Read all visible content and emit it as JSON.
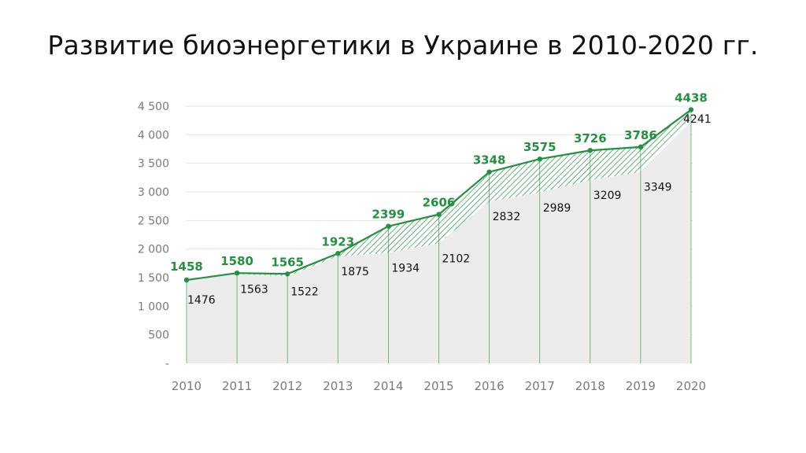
{
  "title": "Развитие биоэнергетики в Украине в 2010-2020 гг.",
  "colors": {
    "line": "#23913f",
    "area": "#ececec",
    "hatch": "#23913f",
    "grid": "#e3e3e3",
    "axis_text": "#7a7a7a"
  },
  "chart_data": {
    "type": "line",
    "title": "Развитие биоэнергетики в Украине в 2010-2020 гг.",
    "xlabel": "",
    "ylabel": "",
    "categories": [
      "2010",
      "2011",
      "2012",
      "2013",
      "2014",
      "2015",
      "2016",
      "2017",
      "2018",
      "2019",
      "2020"
    ],
    "series": [
      {
        "values": [
          1458,
          1580,
          1565,
          1923,
          2399,
          2606,
          3348,
          3575,
          3726,
          3786,
          4438
        ]
      },
      {
        "values": [
          1476,
          1563,
          1522,
          1875,
          1934,
          2102,
          2832,
          2989,
          3209,
          3349,
          4241
        ]
      }
    ],
    "y_ticks": [
      {
        "value": 0,
        "label": "-"
      },
      {
        "value": 500,
        "label": "500"
      },
      {
        "value": 1000,
        "label": "1 000"
      },
      {
        "value": 1500,
        "label": "1 500"
      },
      {
        "value": 2000,
        "label": "2 000"
      },
      {
        "value": 2500,
        "label": "2 500"
      },
      {
        "value": 3000,
        "label": "3 000"
      },
      {
        "value": 3500,
        "label": "3 500"
      },
      {
        "value": 4000,
        "label": "4 000"
      },
      {
        "value": 4500,
        "label": "4 500"
      }
    ],
    "ylim": [
      0,
      4500
    ],
    "grid": true,
    "legend": "none"
  }
}
